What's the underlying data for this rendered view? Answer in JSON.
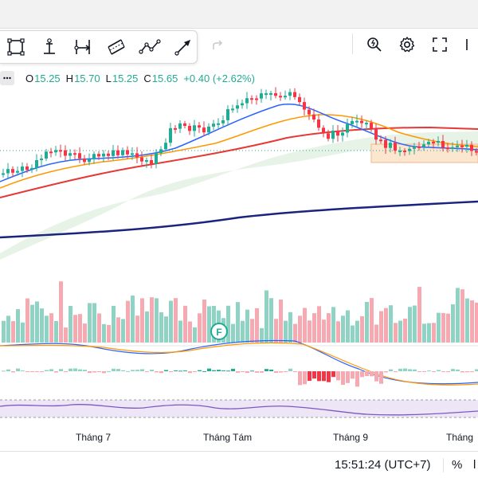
{
  "legend": {
    "open_label": "O",
    "open_value": "15.25",
    "high_label": "H",
    "high_value": "15.70",
    "low_label": "L",
    "low_value": "15.25",
    "close_label": "C",
    "close_value": "15.65",
    "change": "+0.40 (+2.62%)"
  },
  "toolbar": {
    "tools": [
      "rectangle-tool-icon",
      "anchored-text-tool-icon",
      "date-range-tool-icon",
      "parallel-channel-tool-icon",
      "path-tool-icon",
      "arrow-tool-icon"
    ],
    "redo_icon": "redo-icon"
  },
  "top_right": {
    "icons": [
      "zoom-settings-icon",
      "gear-icon",
      "fullscreen-icon",
      "screenshot-icon"
    ]
  },
  "xaxis": {
    "labels": [
      "Tháng 7",
      "Tháng Tám",
      "Tháng 9",
      "Tháng"
    ]
  },
  "marker": {
    "label": "F"
  },
  "bottom": {
    "time": "15:51:24 (UTC+7)",
    "percent": "%",
    "cut": "l"
  },
  "colors": {
    "up": "#22ab94",
    "down": "#f23645",
    "ma_fast": "#2962ff",
    "ma_mid": "#ff9800",
    "ma_slow": "#e53935",
    "ma_long": "#1a237e"
  }
}
